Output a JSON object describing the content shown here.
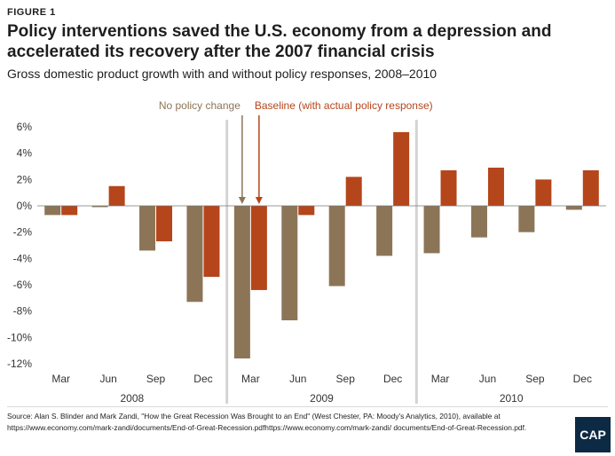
{
  "figure_label": "FIGURE 1",
  "title": "Policy interventions saved the U.S. economy from a depression and accelerated its recovery after the 2007 financial crisis",
  "subtitle": "Gross domestic product growth with and without policy responses, 2008–2010",
  "source": "Source: Alan S. Blinder and Mark Zandi, \"How the Great Recession Was Brought to an End\" (West Chester, PA: Moody's Analytics, 2010), available at https://www.economy.com/mark-zandi/documents/End-of-Great-Recession.pdfhttps://www.economy.com/mark-zandi/ documents/End-of-Great-Recession.pdf.",
  "logo_text": "CAP",
  "chart_data": {
    "type": "bar",
    "categories": [
      "Mar",
      "Jun",
      "Sep",
      "Dec",
      "Mar",
      "Jun",
      "Sep",
      "Dec",
      "Mar",
      "Jun",
      "Sep",
      "Dec"
    ],
    "groups": [
      {
        "label": "2008",
        "start": 0,
        "end": 3
      },
      {
        "label": "2009",
        "start": 4,
        "end": 7
      },
      {
        "label": "2010",
        "start": 8,
        "end": 11
      }
    ],
    "series": [
      {
        "name": "No policy change",
        "color": "#8c7557",
        "values": [
          -0.7,
          -0.1,
          -3.4,
          -7.3,
          -11.6,
          -8.7,
          -6.1,
          -3.8,
          -3.6,
          -2.4,
          -2.0,
          -0.3
        ]
      },
      {
        "name": "Baseline (with actual policy response)",
        "color": "#b5451b",
        "values": [
          -0.7,
          1.5,
          -2.7,
          -5.4,
          -6.4,
          -0.7,
          2.2,
          5.6,
          2.7,
          2.9,
          2.0,
          2.7
        ]
      }
    ],
    "ylim": [
      -12,
      6
    ],
    "yticks": [
      6,
      4,
      2,
      0,
      -2,
      -4,
      -6,
      -8,
      -10,
      -12
    ],
    "ytick_labels": [
      "6%",
      "4%",
      "2%",
      "0%",
      "-2%",
      "-4%",
      "-6%",
      "-8%",
      "-10%",
      "-12%"
    ],
    "legend_placement": "top-center with arrows",
    "grid": false
  }
}
